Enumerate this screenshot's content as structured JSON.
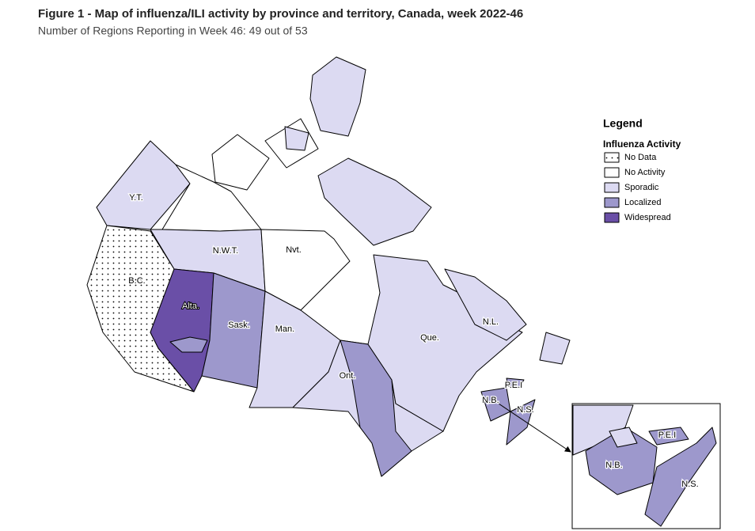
{
  "header": {
    "title": "Figure 1 - Map of influenza/ILI activity by province and territory, Canada, week 2022-46",
    "subtitle": "Number of Regions Reporting in Week 46: 49 out of 53"
  },
  "legend": {
    "title": "Legend",
    "subtitle": "Influenza Activity",
    "items": [
      "No Data",
      "No Activity",
      "Sporadic",
      "Localized",
      "Widespread"
    ]
  },
  "map": {
    "labels": [
      "Y.T.",
      "N.W.T.",
      "Nvt.",
      "B.C.",
      "Alta.",
      "Sask.",
      "Man.",
      "Ont.",
      "Que.",
      "N.L.",
      "P.E.I",
      "N.B.",
      "N.S."
    ],
    "inset_labels": [
      "P.E.I",
      "N.B.",
      "N.S."
    ]
  }
}
